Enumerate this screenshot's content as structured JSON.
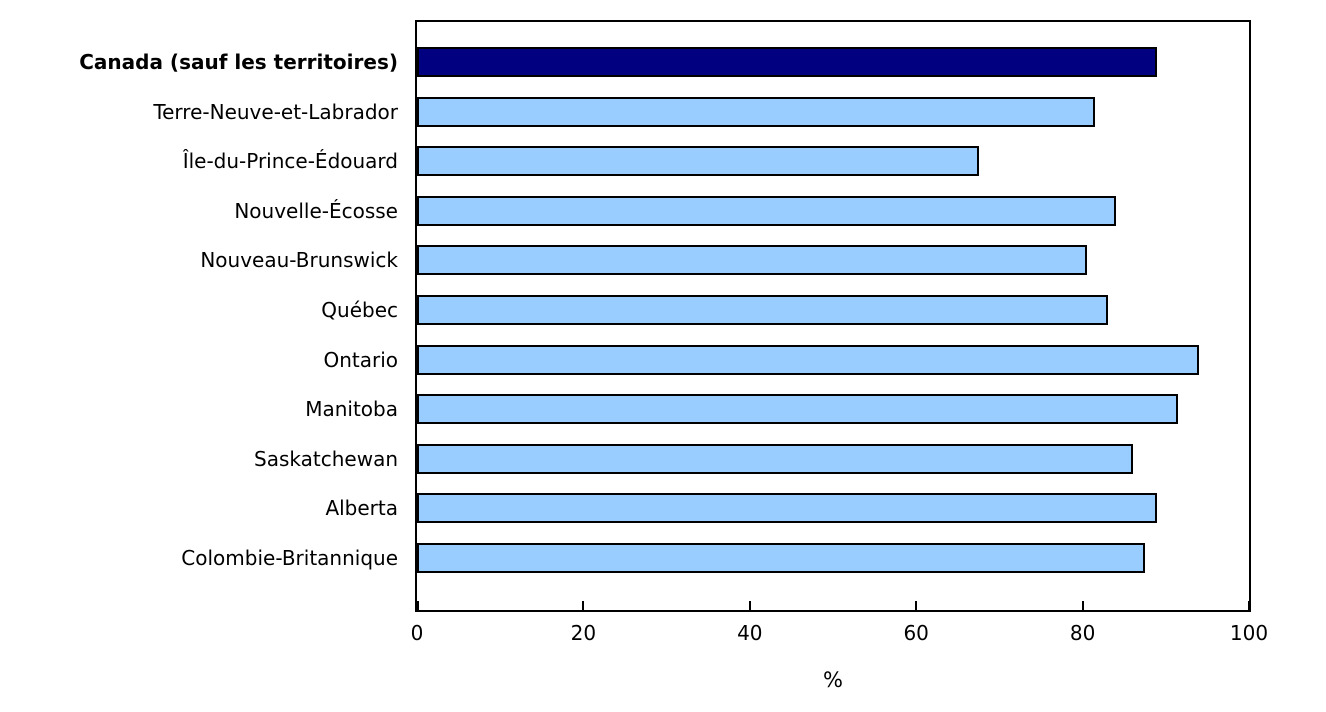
{
  "chart_data": {
    "type": "bar",
    "orientation": "horizontal",
    "title": "",
    "xlabel": "%",
    "xlim": [
      0,
      100
    ],
    "xticks": [
      0,
      20,
      40,
      60,
      80,
      100
    ],
    "grid": false,
    "legend": null,
    "categories": [
      "Canada (sauf les territoires)",
      "Terre-Neuve-et-Labrador",
      "Île-du-Prince-Édouard",
      "Nouvelle-Écosse",
      "Nouveau-Brunswick",
      "Québec",
      "Ontario",
      "Manitoba",
      "Saskatchewan",
      "Alberta",
      "Colombie-Britannique"
    ],
    "values": [
      89,
      81.5,
      67.5,
      84,
      80.5,
      83,
      94,
      91.5,
      86,
      89,
      87.5
    ],
    "highlight_index": 0,
    "colors": {
      "highlight_bar": "#000080",
      "default_bar": "#99CCFF",
      "bar_border": "#000000",
      "axis": "#000000",
      "background": "#ffffff"
    }
  }
}
